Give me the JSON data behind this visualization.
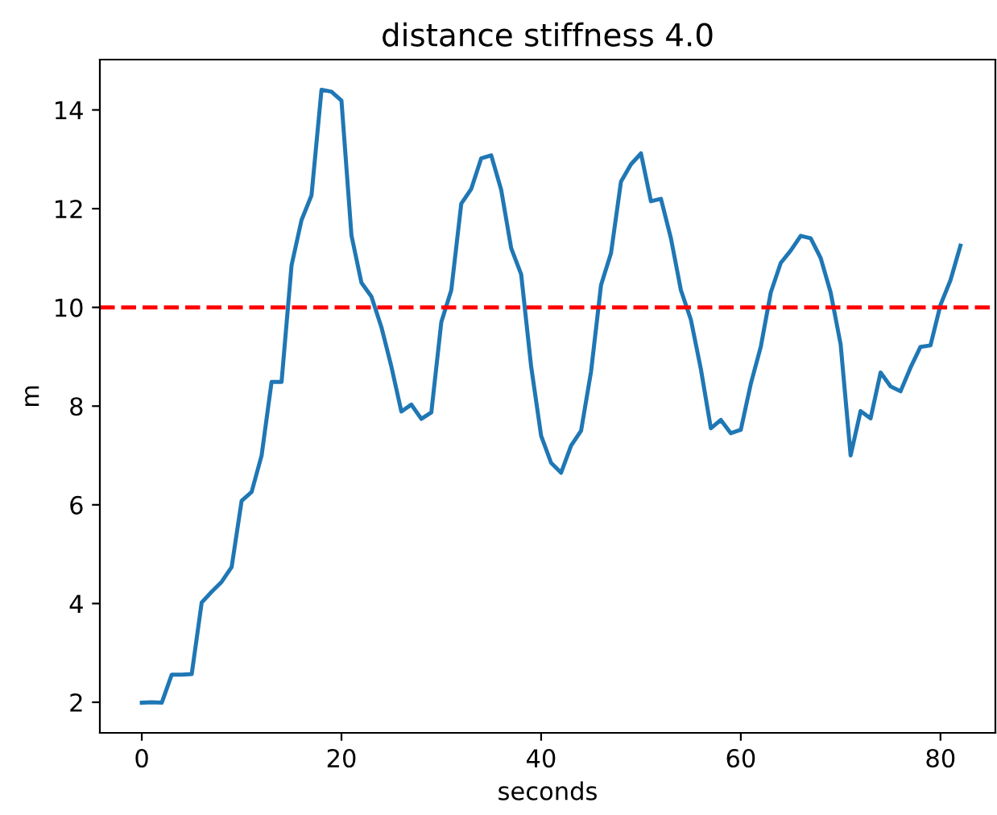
{
  "chart_data": {
    "type": "line",
    "title": "distance stiffness 4.0",
    "xlabel": "seconds",
    "ylabel": "m",
    "x": [
      0,
      1,
      2,
      3,
      4,
      5,
      6,
      7,
      8,
      9,
      10,
      11,
      12,
      13,
      14,
      15,
      16,
      17,
      18,
      19,
      20,
      21,
      22,
      23,
      24,
      25,
      26,
      27,
      28,
      29,
      30,
      31,
      32,
      33,
      34,
      35,
      36,
      37,
      38,
      39,
      40,
      41,
      42,
      43,
      44,
      45,
      46,
      47,
      48,
      49,
      50,
      51,
      52,
      53,
      54,
      55,
      56,
      57,
      58,
      59,
      60,
      61,
      62,
      63,
      64,
      65,
      66,
      67,
      68,
      69,
      70,
      71,
      72,
      73,
      74,
      75,
      76,
      77,
      78,
      79,
      80,
      81,
      82
    ],
    "series": [
      {
        "color": "#1f77b4",
        "values": [
          1.99,
          2.0,
          1.99,
          2.56,
          2.56,
          2.57,
          4.02,
          4.24,
          4.44,
          4.74,
          6.08,
          6.26,
          7.0,
          8.49,
          8.49,
          10.85,
          11.77,
          12.27,
          14.41,
          14.37,
          14.19,
          11.46,
          10.5,
          10.22,
          9.6,
          8.8,
          7.89,
          8.03,
          7.74,
          7.87,
          9.7,
          10.35,
          12.1,
          12.4,
          13.02,
          13.08,
          12.38,
          11.2,
          10.67,
          8.8,
          7.4,
          6.85,
          6.65,
          7.2,
          7.5,
          8.7,
          10.45,
          11.1,
          12.55,
          12.9,
          13.12,
          12.15,
          12.2,
          11.4,
          10.35,
          9.75,
          8.75,
          7.55,
          7.72,
          7.45,
          7.52,
          8.45,
          9.2,
          10.3,
          10.9,
          11.15,
          11.45,
          11.4,
          11.0,
          10.3,
          9.25,
          7.0,
          7.9,
          7.75,
          8.68,
          8.4,
          8.3,
          8.78,
          9.2,
          9.23,
          10.05,
          10.55,
          11.25
        ]
      }
    ],
    "ref_lines": [
      {
        "axis": "y",
        "value": 10,
        "color": "#ff0000",
        "line_style": "dashed"
      }
    ],
    "xlim": [
      -4.2,
      85.5
    ],
    "xticks": [
      0,
      20,
      40,
      60,
      80
    ],
    "ylim": [
      1.38,
      15.02
    ],
    "yticks": [
      2,
      4,
      6,
      8,
      10,
      12,
      14
    ],
    "grid": false,
    "legend": false
  }
}
